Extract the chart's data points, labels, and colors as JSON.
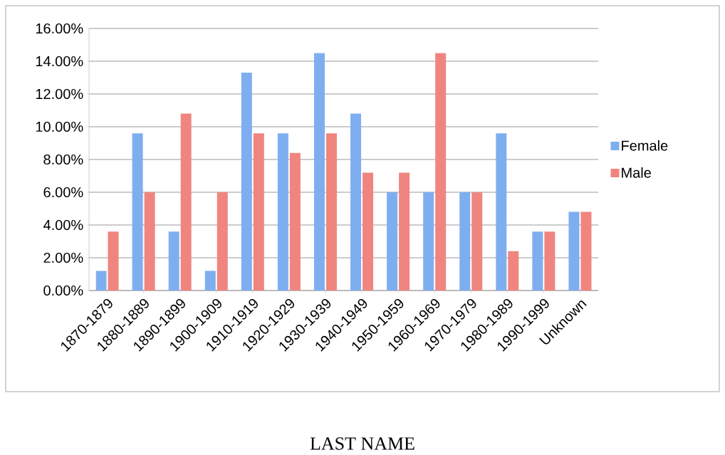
{
  "chart_data": {
    "type": "bar",
    "categories": [
      "1870-1879",
      "1880-1889",
      "1890-1899",
      "1900-1909",
      "1910-1919",
      "1920-1929",
      "1930-1939",
      "1940-1949",
      "1950-1959",
      "1960-1969",
      "1970-1979",
      "1980-1989",
      "1990-1999",
      "Unknown"
    ],
    "series": [
      {
        "name": "Female",
        "color": "#7eaef0",
        "values": [
          1.2,
          9.6,
          3.6,
          1.2,
          13.3,
          9.6,
          14.5,
          10.8,
          6.0,
          6.0,
          6.0,
          9.6,
          3.6,
          4.8
        ]
      },
      {
        "name": "Male",
        "color": "#f0857f",
        "values": [
          3.6,
          6.0,
          10.8,
          6.0,
          9.6,
          8.4,
          9.6,
          7.2,
          7.2,
          14.5,
          6.0,
          2.4,
          3.6,
          4.8
        ]
      }
    ],
    "ylim": [
      0,
      16
    ],
    "yticks": [
      {
        "value": 0,
        "label": "0.00%"
      },
      {
        "value": 2,
        "label": "2.00%"
      },
      {
        "value": 4,
        "label": "4.00%"
      },
      {
        "value": 6,
        "label": "6.00%"
      },
      {
        "value": 8,
        "label": "8.00%"
      },
      {
        "value": 10,
        "label": "10.00%"
      },
      {
        "value": 12,
        "label": "12.00%"
      },
      {
        "value": 14,
        "label": "14.00%"
      },
      {
        "value": 16,
        "label": "16.00%"
      }
    ],
    "grid": "y",
    "legend": "right",
    "annotations": [
      "LAST NAME"
    ]
  }
}
